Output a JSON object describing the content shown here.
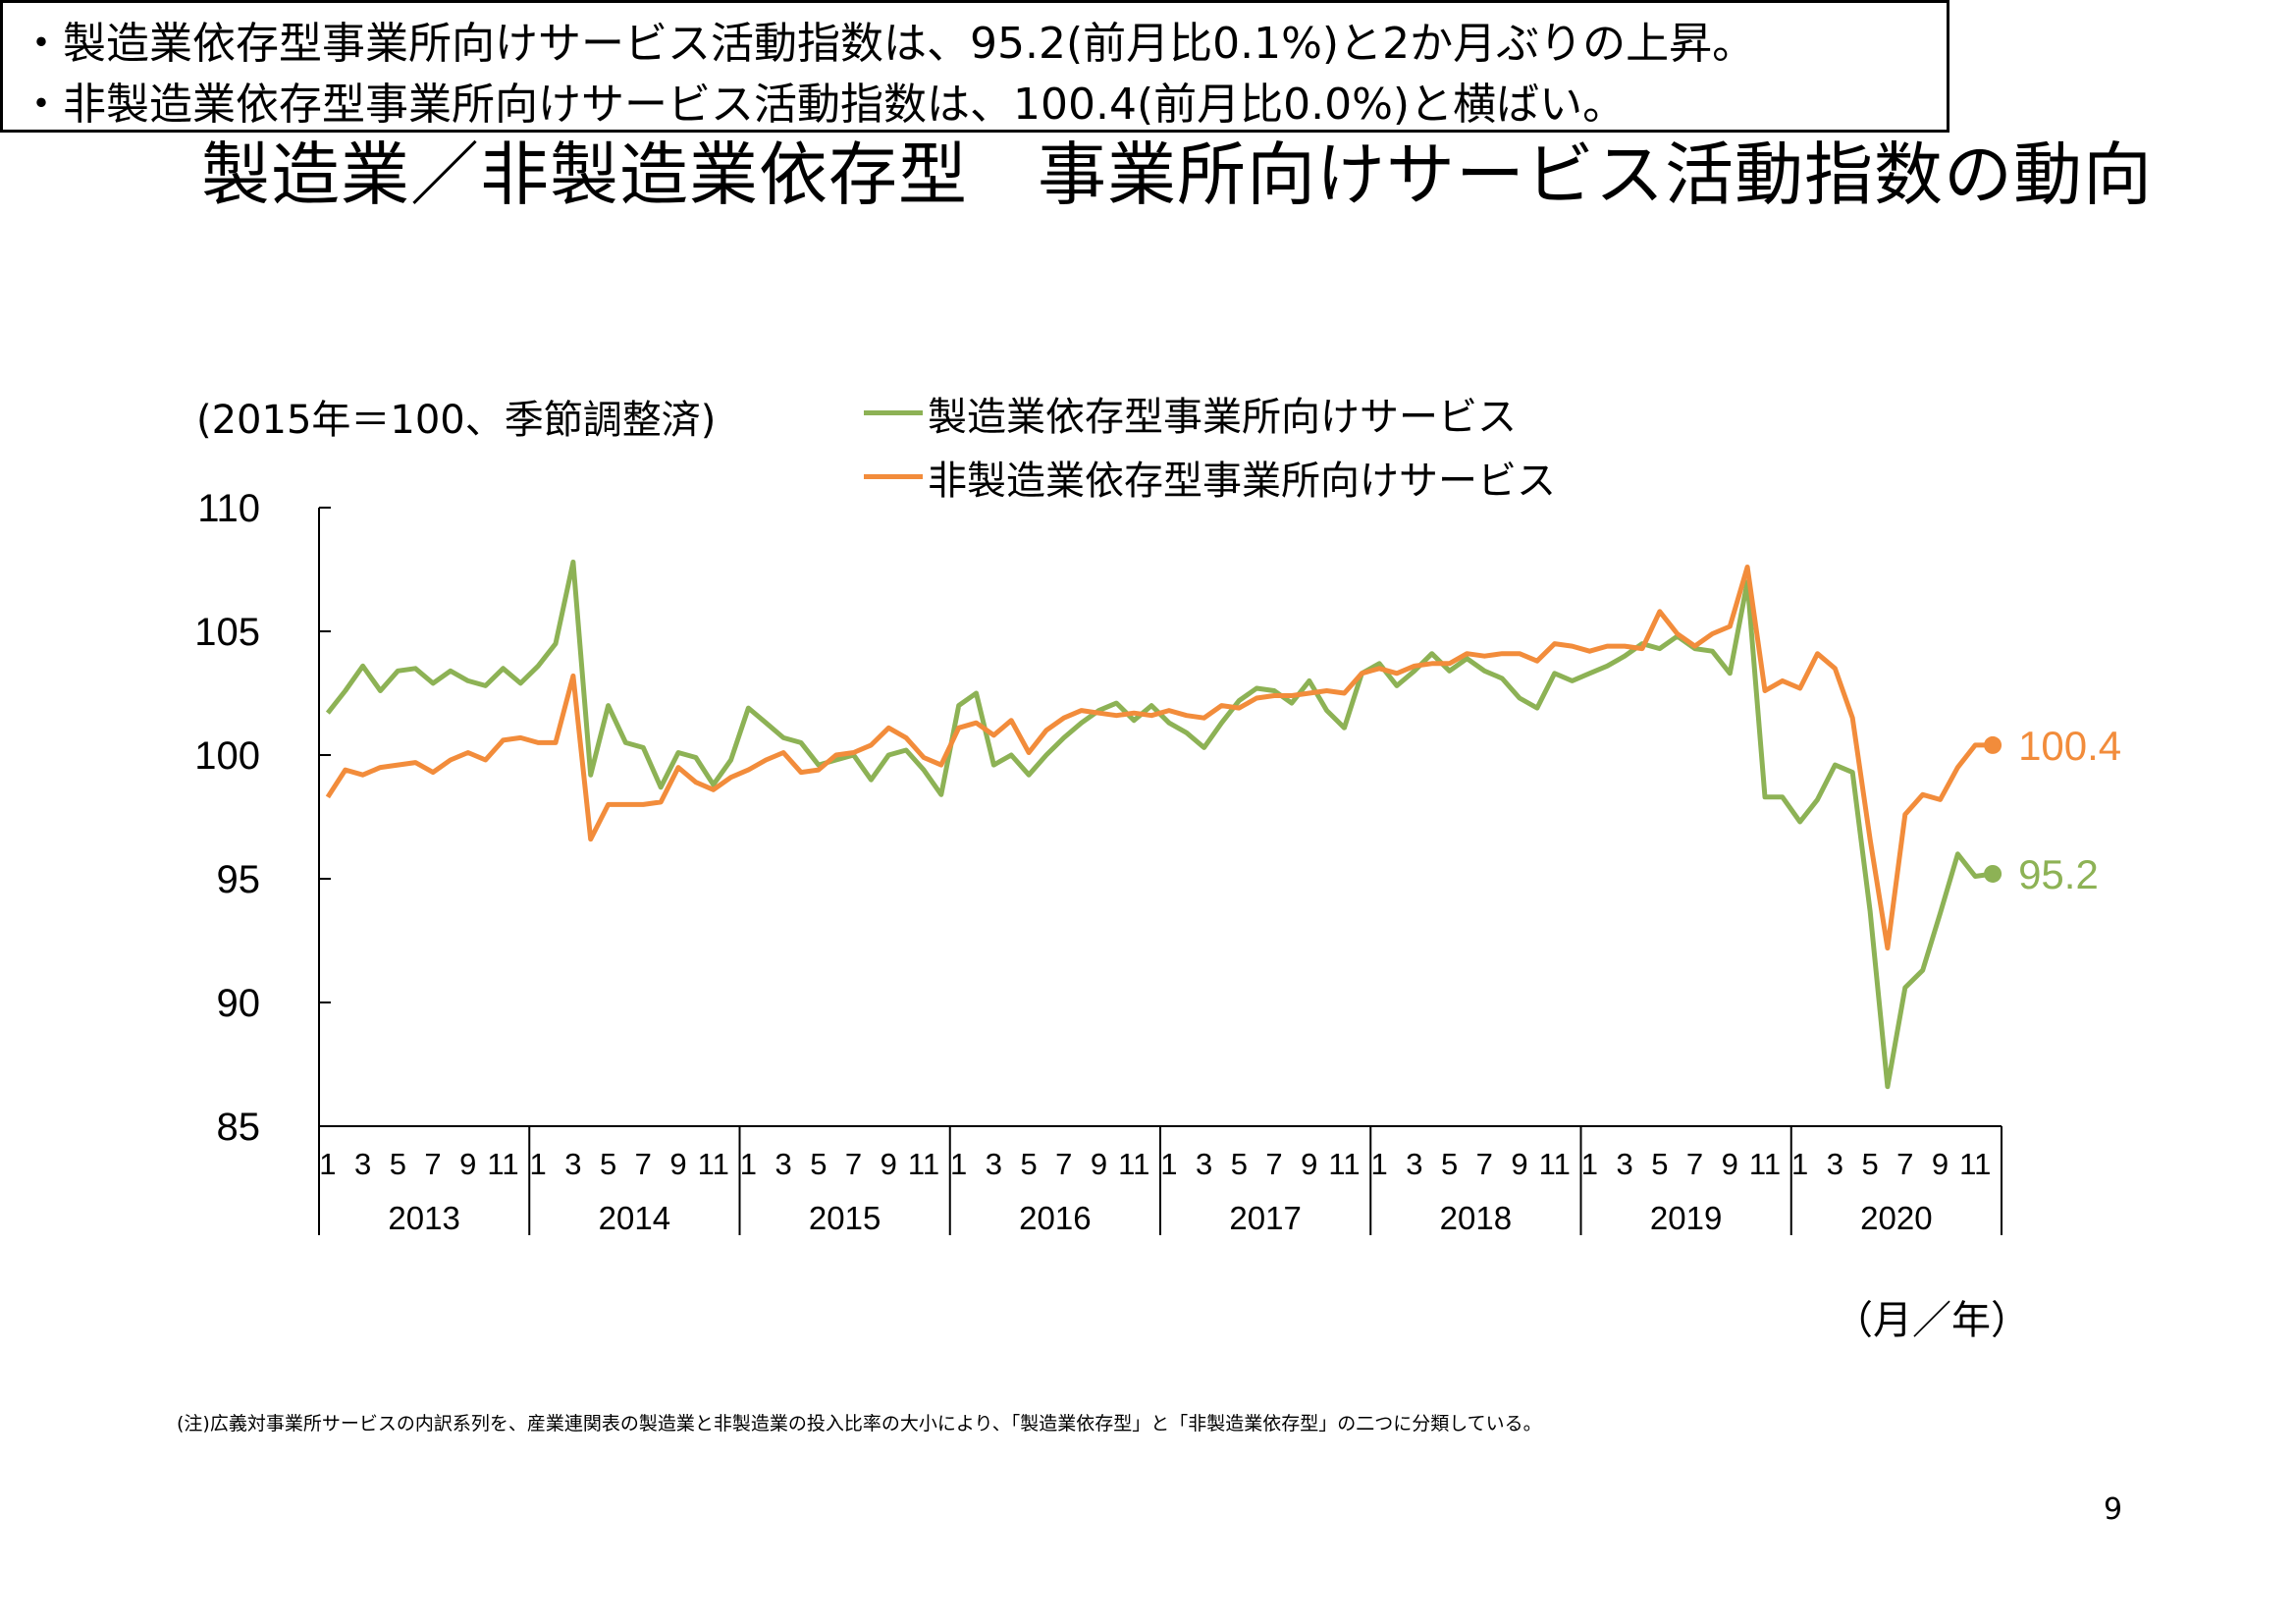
{
  "title": "製造業／非製造業依存型　事業所向けサービス活動指数の動向",
  "summary": [
    "・製造業依存型事業所向けサービス活動指数は、95.2(前月比0.1%)と2か月ぶりの上昇。",
    "・非製造業依存型事業所向けサービス活動指数は、100.4(前月比0.0%)と横ばい。"
  ],
  "unit_label": "(2015年＝100、季節調整済)",
  "x_unit_label": "（月／年）",
  "note": "(注)広義対事業所サービスの内訳系列を、産業連関表の製造業と非製造業の投入比率の大小により、「製造業依存型」と「非製造業依存型」の二つに分類している。",
  "page_number": "9",
  "chart_data": {
    "type": "line",
    "ylim": [
      85,
      110
    ],
    "yticks": [
      "110",
      "105",
      "100",
      "95",
      "90",
      "85"
    ],
    "month_tick_labels": [
      "1",
      "3",
      "5",
      "7",
      "9",
      "11"
    ],
    "years": [
      "2013",
      "2014",
      "2015",
      "2016",
      "2017",
      "2018",
      "2019",
      "2020"
    ],
    "grid": false,
    "legend_position": "top",
    "series": [
      {
        "name": "製造業依存型事業所向けサービス",
        "color": "#8DB255",
        "end_label": "95.2",
        "values": [
          101.7,
          102.6,
          103.6,
          102.6,
          103.4,
          103.5,
          102.9,
          103.4,
          103.0,
          102.8,
          103.5,
          102.9,
          103.6,
          104.5,
          107.8,
          99.2,
          102.0,
          100.5,
          100.3,
          98.7,
          100.1,
          99.9,
          98.8,
          99.8,
          101.9,
          101.3,
          100.7,
          100.5,
          99.6,
          99.8,
          100.0,
          99.0,
          100.0,
          100.2,
          99.4,
          98.4,
          102.0,
          102.5,
          99.6,
          100.0,
          99.2,
          100.0,
          100.7,
          101.3,
          101.8,
          102.1,
          101.4,
          102.0,
          101.3,
          100.9,
          100.3,
          101.3,
          102.2,
          102.7,
          102.6,
          102.1,
          103.0,
          101.8,
          101.1,
          103.3,
          103.7,
          102.8,
          103.4,
          104.1,
          103.4,
          103.9,
          103.4,
          103.1,
          102.3,
          101.9,
          103.3,
          103.0,
          103.3,
          103.6,
          104.0,
          104.5,
          104.3,
          104.8,
          104.3,
          104.2,
          103.3,
          107.0,
          98.3,
          98.3,
          97.3,
          98.2,
          99.6,
          99.3,
          93.7,
          86.6,
          90.6,
          91.3,
          93.6,
          96.0,
          95.1,
          95.2
        ]
      },
      {
        "name": "非製造業依存型事業所向けサービス",
        "color": "#F28C3B",
        "end_label": "100.4",
        "values": [
          98.3,
          99.4,
          99.2,
          99.5,
          99.6,
          99.7,
          99.3,
          99.8,
          100.1,
          99.8,
          100.6,
          100.7,
          100.5,
          100.5,
          103.2,
          96.6,
          98.0,
          98.0,
          98.0,
          98.1,
          99.5,
          98.9,
          98.6,
          99.1,
          99.4,
          99.8,
          100.1,
          99.3,
          99.4,
          100.0,
          100.1,
          100.4,
          101.1,
          100.7,
          99.9,
          99.6,
          101.1,
          101.3,
          100.8,
          101.4,
          100.1,
          101.0,
          101.5,
          101.8,
          101.7,
          101.6,
          101.7,
          101.6,
          101.8,
          101.6,
          101.5,
          102.0,
          101.9,
          102.3,
          102.4,
          102.4,
          102.5,
          102.6,
          102.5,
          103.3,
          103.5,
          103.3,
          103.6,
          103.7,
          103.7,
          104.1,
          104.0,
          104.1,
          104.1,
          103.8,
          104.5,
          104.4,
          104.2,
          104.4,
          104.4,
          104.3,
          105.8,
          104.9,
          104.4,
          104.9,
          105.2,
          107.6,
          102.6,
          103.0,
          102.7,
          104.1,
          103.5,
          101.5,
          96.6,
          92.2,
          97.6,
          98.4,
          98.2,
          99.5,
          100.4,
          100.4
        ]
      }
    ]
  }
}
